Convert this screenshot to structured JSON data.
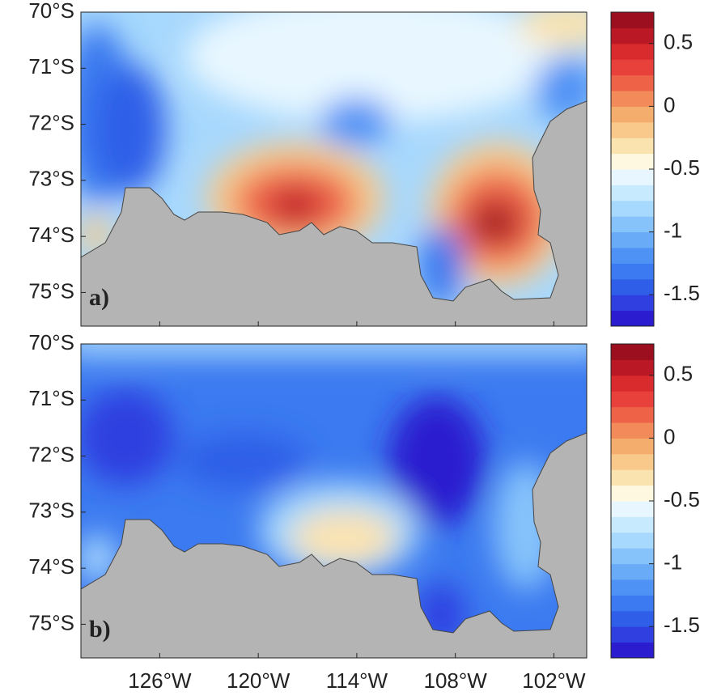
{
  "panels": [
    {
      "label": "a)",
      "colorbar": {
        "lim": [
          -1.75,
          0.75
        ],
        "ticks": [
          0.5,
          0,
          -0.5,
          -1,
          -1.5
        ]
      }
    },
    {
      "label": "b)",
      "colorbar": {
        "lim": [
          -1.75,
          0.75
        ],
        "ticks": [
          0.5,
          0,
          -0.5,
          -1,
          -1.5
        ]
      }
    }
  ],
  "lat_axis": {
    "lim": [
      -70,
      -75.6
    ],
    "ticks": [
      {
        "value": -70,
        "label": "70°S"
      },
      {
        "value": -71,
        "label": "71°S"
      },
      {
        "value": -72,
        "label": "72°S"
      },
      {
        "value": -73,
        "label": "73°S"
      },
      {
        "value": -74,
        "label": "74°S"
      },
      {
        "value": -75,
        "label": "75°S"
      }
    ]
  },
  "lon_axis": {
    "lim": [
      -130.8,
      -100
    ],
    "ticks": [
      {
        "value": -126,
        "label": "126°W"
      },
      {
        "value": -120,
        "label": "120°W"
      },
      {
        "value": -114,
        "label": "114°W"
      },
      {
        "value": -108,
        "label": "108°W"
      },
      {
        "value": -102,
        "label": "102°W"
      }
    ]
  },
  "colormap": [
    "#2b1ccf",
    "#2f3fe0",
    "#2f5fe8",
    "#3b7af0",
    "#4f92f5",
    "#6aabf8",
    "#86c3fb",
    "#a7d8fd",
    "#c8eafe",
    "#e8f7ff",
    "#fff8e0",
    "#fbe3b0",
    "#f8c98a",
    "#f5ad6e",
    "#f28a5a",
    "#ee6248",
    "#e8403a",
    "#d92a2e",
    "#bb1826",
    "#9c0f1e"
  ]
}
